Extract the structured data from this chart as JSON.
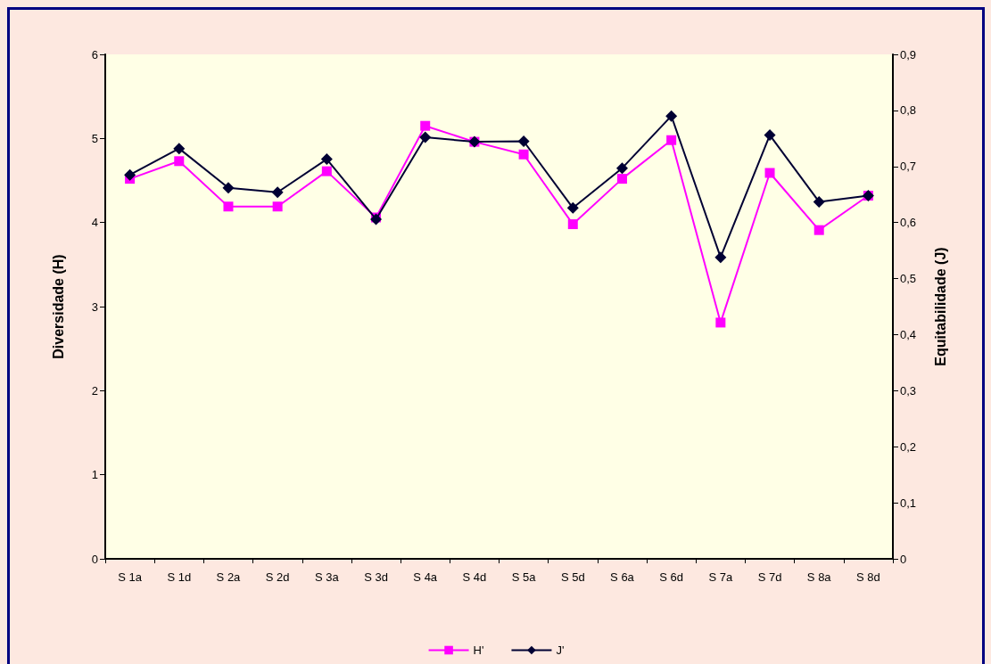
{
  "chart_data": {
    "type": "line",
    "ylabel": "Diversidade (H)",
    "y2label": "Equitabilidade (J)",
    "categories": [
      "S 1a",
      "S 1d",
      "S 2a",
      "S 2d",
      "S 3a",
      "S 3d",
      "S 4a",
      "S 4d",
      "S 5a",
      "S 5d",
      "S 6a",
      "S 6d",
      "S 7a",
      "S 7d",
      "S 8a",
      "S 8d"
    ],
    "series": [
      {
        "name": "H'",
        "color": "#ff00ff",
        "marker": "square",
        "values": [
          4.52,
          4.73,
          4.19,
          4.19,
          4.61,
          4.06,
          5.15,
          4.96,
          4.81,
          3.98,
          4.52,
          4.98,
          2.81,
          4.59,
          3.91,
          4.32
        ]
      },
      {
        "name": "J'",
        "color": "#000033",
        "marker": "diamond",
        "axis": "y2",
        "values": [
          0.685,
          0.732,
          0.662,
          0.654,
          0.713,
          0.606,
          0.752,
          0.744,
          0.745,
          0.626,
          0.697,
          0.79,
          0.538,
          0.756,
          0.637,
          0.648
        ]
      }
    ],
    "ylim": [
      0,
      6
    ],
    "yticks": [
      0,
      1,
      2,
      3,
      4,
      5,
      6
    ],
    "y2lim": [
      0,
      0.9
    ],
    "y2ticks": [
      0,
      {
        "value": 0.1,
        "label": "0,1"
      },
      {
        "value": 0.2,
        "label": "0,2"
      },
      {
        "value": 0.3,
        "label": "0,3"
      },
      {
        "value": 0.4,
        "label": "0,4"
      },
      {
        "value": 0.5,
        "label": "0,5"
      },
      {
        "value": 0.6,
        "label": "0,6"
      },
      {
        "value": 0.7,
        "label": "0,7"
      },
      {
        "value": 0.8,
        "label": "0,8"
      },
      {
        "value": 0.9,
        "label": "0,9"
      }
    ],
    "grid": false,
    "legend": "bottom",
    "line_style": "solid"
  }
}
